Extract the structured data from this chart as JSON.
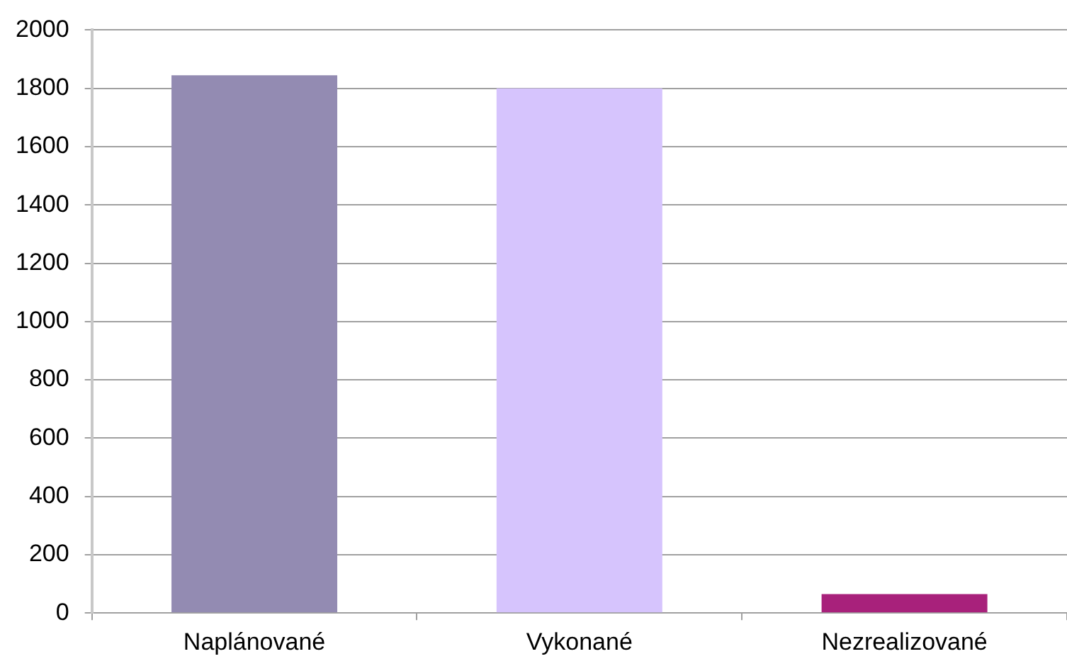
{
  "chart_data": {
    "type": "bar",
    "categories": [
      "Naplánované",
      "Vykonané",
      "Nezrealizované"
    ],
    "values": [
      1845,
      1800,
      65
    ],
    "colors": [
      "#938bb2",
      "#d6c4fd",
      "#a8217b"
    ],
    "ylim": [
      0,
      2000
    ],
    "yticks": [
      0,
      200,
      400,
      600,
      800,
      1000,
      1200,
      1400,
      1600,
      1800,
      2000
    ],
    "grid": "y"
  }
}
